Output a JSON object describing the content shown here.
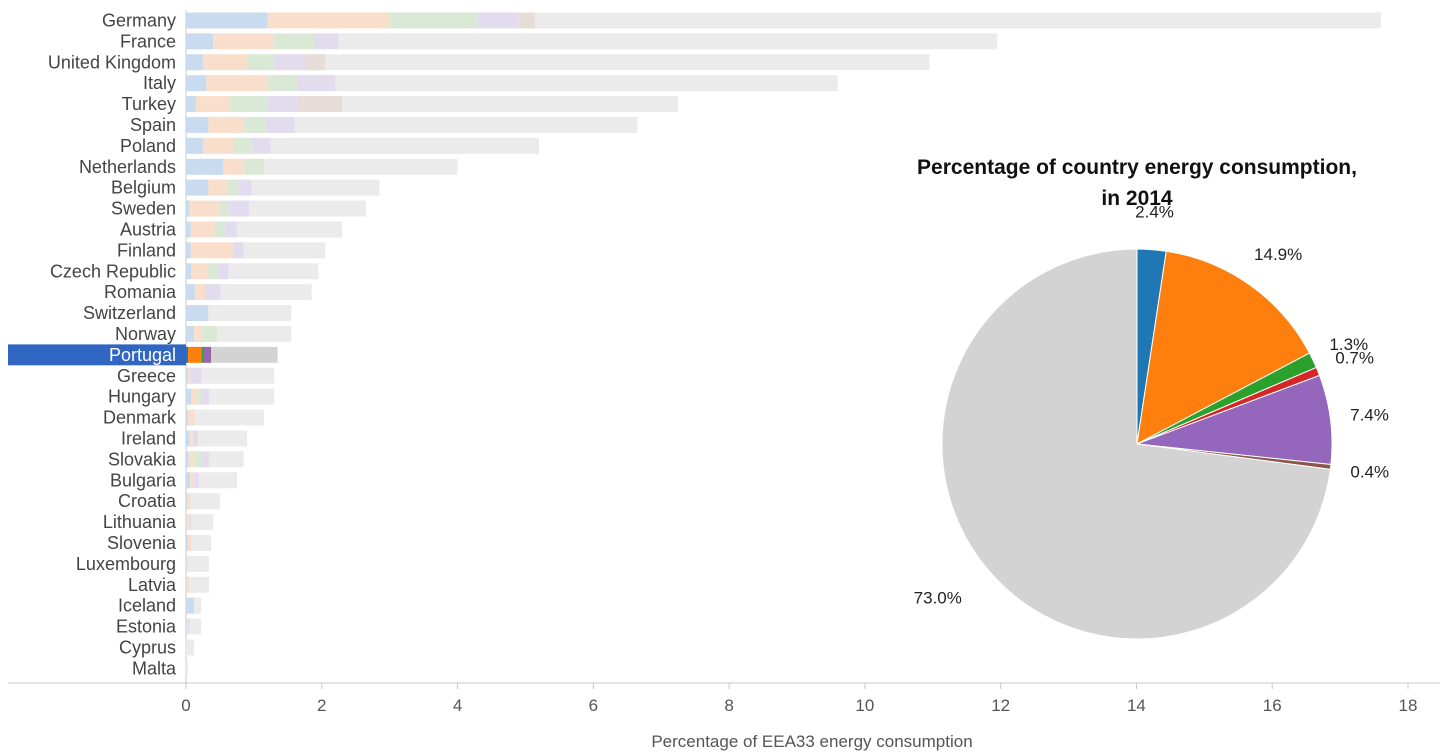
{
  "chart_data": [
    {
      "type": "bar",
      "orientation": "horizontal",
      "stacked": true,
      "xlabel": "Percentage of EEA33 energy consumption",
      "xlim": [
        0,
        18
      ],
      "x_ticks": [
        0,
        2,
        4,
        6,
        8,
        10,
        12,
        14,
        16,
        18
      ],
      "highlighted": "Portugal",
      "highlight_color": "#3066c2",
      "segment_colors": [
        "#1f77b4",
        "#ff7f0e",
        "#2ca02c",
        "#d62728",
        "#9467bd",
        "#8c564b",
        "#d3d3d3"
      ],
      "muted_colors": [
        "#c9dcef",
        "#f9dfcb",
        "#d9e9d6",
        "#f0d9d9",
        "#e3dcee",
        "#e6dcd8",
        "#ebebeb"
      ],
      "rows": [
        {
          "country": "Germany",
          "segments": [
            1.2,
            1.8,
            1.3,
            0.0,
            0.6,
            0.24,
            12.46
          ],
          "total": 17.6
        },
        {
          "country": "France",
          "segments": [
            0.4,
            0.9,
            0.6,
            0.0,
            0.35,
            0.0,
            9.7
          ],
          "total": 11.95
        },
        {
          "country": "United Kingdom",
          "segments": [
            0.25,
            0.65,
            0.4,
            0.0,
            0.45,
            0.3,
            8.9
          ],
          "total": 10.95
        },
        {
          "country": "Italy",
          "segments": [
            0.3,
            0.9,
            0.45,
            0.0,
            0.55,
            0.0,
            7.4
          ],
          "total": 9.6
        },
        {
          "country": "Turkey",
          "segments": [
            0.15,
            0.5,
            0.55,
            0.0,
            0.45,
            0.65,
            4.95
          ],
          "total": 7.25
        },
        {
          "country": "Spain",
          "segments": [
            0.33,
            0.52,
            0.33,
            0.0,
            0.42,
            0.0,
            5.05
          ],
          "total": 6.65
        },
        {
          "country": "Poland",
          "segments": [
            0.25,
            0.45,
            0.27,
            0.0,
            0.28,
            0.0,
            3.95
          ],
          "total": 5.2
        },
        {
          "country": "Netherlands",
          "segments": [
            0.55,
            0.3,
            0.3,
            0.0,
            0.0,
            0.0,
            2.85
          ],
          "total": 4.0
        },
        {
          "country": "Belgium",
          "segments": [
            0.33,
            0.27,
            0.17,
            0.0,
            0.2,
            0.0,
            1.88
          ],
          "total": 2.85
        },
        {
          "country": "Sweden",
          "segments": [
            0.05,
            0.45,
            0.13,
            0.0,
            0.3,
            0.0,
            1.72
          ],
          "total": 2.65
        },
        {
          "country": "Austria",
          "segments": [
            0.07,
            0.35,
            0.17,
            0.0,
            0.16,
            0.0,
            1.55
          ],
          "total": 2.3
        },
        {
          "country": "Finland",
          "segments": [
            0.07,
            0.62,
            0.0,
            0.0,
            0.16,
            0.0,
            1.2
          ],
          "total": 2.05
        },
        {
          "country": "Czech Republic",
          "segments": [
            0.08,
            0.25,
            0.15,
            0.0,
            0.15,
            0.0,
            1.32
          ],
          "total": 1.95
        },
        {
          "country": "Romania",
          "segments": [
            0.13,
            0.15,
            0.0,
            0.0,
            0.23,
            0.0,
            1.34
          ],
          "total": 1.85
        },
        {
          "country": "Switzerland",
          "segments": [
            0.33,
            0.0,
            0.0,
            0.0,
            0.0,
            0.0,
            1.22
          ],
          "total": 1.55
        },
        {
          "country": "Norway",
          "segments": [
            0.12,
            0.12,
            0.22,
            0.0,
            0.0,
            0.0,
            1.09
          ],
          "total": 1.55
        },
        {
          "country": "Portugal",
          "segments": [
            0.03,
            0.2,
            0.02,
            0.01,
            0.1,
            0.01,
            0.98
          ],
          "total": 1.35
        },
        {
          "country": "Greece",
          "segments": [
            0.03,
            0.03,
            0.0,
            0.0,
            0.17,
            0.0,
            1.07
          ],
          "total": 1.3
        },
        {
          "country": "Hungary",
          "segments": [
            0.08,
            0.1,
            0.06,
            0.0,
            0.1,
            0.0,
            0.96
          ],
          "total": 1.3
        },
        {
          "country": "Denmark",
          "segments": [
            0.03,
            0.1,
            0.0,
            0.0,
            0.0,
            0.0,
            1.02
          ],
          "total": 1.15
        },
        {
          "country": "Ireland",
          "segments": [
            0.05,
            0.05,
            0.0,
            0.0,
            0.08,
            0.0,
            0.72
          ],
          "total": 0.9
        },
        {
          "country": "Slovakia",
          "segments": [
            0.04,
            0.08,
            0.12,
            0.0,
            0.1,
            0.0,
            0.51
          ],
          "total": 0.85
        },
        {
          "country": "Bulgaria",
          "segments": [
            0.06,
            0.06,
            0.0,
            0.0,
            0.07,
            0.0,
            0.56
          ],
          "total": 0.75
        },
        {
          "country": "Croatia",
          "segments": [
            0.02,
            0.05,
            0.0,
            0.0,
            0.0,
            0.0,
            0.43
          ],
          "total": 0.5
        },
        {
          "country": "Lithuania",
          "segments": [
            0.01,
            0.05,
            0.0,
            0.0,
            0.02,
            0.0,
            0.32
          ],
          "total": 0.4
        },
        {
          "country": "Slovenia",
          "segments": [
            0.03,
            0.05,
            0.0,
            0.0,
            0.0,
            0.0,
            0.29
          ],
          "total": 0.37
        },
        {
          "country": "Luxembourg",
          "segments": [
            0.01,
            0.02,
            0.0,
            0.0,
            0.01,
            0.0,
            0.3
          ],
          "total": 0.34
        },
        {
          "country": "Latvia",
          "segments": [
            0.01,
            0.04,
            0.0,
            0.0,
            0.0,
            0.0,
            0.29
          ],
          "total": 0.34
        },
        {
          "country": "Iceland",
          "segments": [
            0.12,
            0.0,
            0.0,
            0.0,
            0.0,
            0.0,
            0.1
          ],
          "total": 0.22
        },
        {
          "country": "Estonia",
          "segments": [
            0.01,
            0.02,
            0.0,
            0.0,
            0.02,
            0.0,
            0.17
          ],
          "total": 0.22
        },
        {
          "country": "Cyprus",
          "segments": [
            0.0,
            0.0,
            0.0,
            0.0,
            0.0,
            0.0,
            0.12
          ],
          "total": 0.12
        },
        {
          "country": "Malta",
          "segments": [
            0.0,
            0.0,
            0.0,
            0.0,
            0.0,
            0.0,
            0.03
          ],
          "total": 0.03
        }
      ]
    },
    {
      "type": "pie",
      "title": "Percentage of country energy consumption, in 2014",
      "values": [
        2.4,
        14.9,
        1.3,
        0.7,
        7.4,
        0.4,
        73.0
      ],
      "labels": [
        "2.4%",
        "14.9%",
        "1.3%",
        "0.7%",
        "7.4%",
        "0.4%",
        "73.0%"
      ],
      "colors": [
        "#1f77b4",
        "#ff7f0e",
        "#2ca02c",
        "#d62728",
        "#9467bd",
        "#8c564b",
        "#d3d3d3"
      ],
      "start_angle_deg": 0,
      "direction": "clockwise"
    }
  ]
}
